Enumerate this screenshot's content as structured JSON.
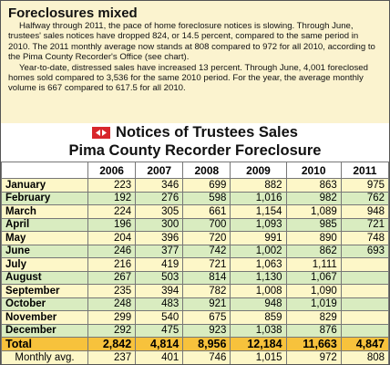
{
  "header": {
    "title": "Foreclosures mixed",
    "paragraphs": [
      "Halfway through 2011, the pace of home foreclosure notices is slowing. Through June, trustees' sales notices have dropped 824, or 14.5 percent, compared to the same period in 2010. The 2011 monthly average now stands at 808 compared to 972 for all 2010, according to the Pima County Recorder's Office (see chart).",
      "Year-to-date, distressed sales have increased 13 percent. Through June, 4,001 foreclosed homes sold compared to 3,536 for the same 2010 period. For the year, the average monthly volume is 667 compared to 617.5 for all 2010."
    ]
  },
  "table": {
    "title": [
      "Notices of Trustees Sales",
      "Pima County Recorder Foreclosure"
    ],
    "columns": [
      "2006",
      "2007",
      "2008",
      "2009",
      "2010",
      "2011"
    ],
    "rows": [
      [
        "January",
        "223",
        "346",
        "699",
        "882",
        "863",
        "975"
      ],
      [
        "February",
        "192",
        "276",
        "598",
        "1,016",
        "982",
        "762"
      ],
      [
        "March",
        "224",
        "305",
        "661",
        "1,154",
        "1,089",
        "948"
      ],
      [
        "April",
        "196",
        "300",
        "700",
        "1,093",
        "985",
        "721"
      ],
      [
        "May",
        "204",
        "396",
        "720",
        "991",
        "890",
        "748"
      ],
      [
        "June",
        "246",
        "377",
        "742",
        "1,002",
        "862",
        "693"
      ],
      [
        "July",
        "216",
        "419",
        "721",
        "1,063",
        "1,111"
      ],
      [
        "August",
        "267",
        "503",
        "814",
        "1,130",
        "1,067"
      ],
      [
        "September",
        "235",
        "394",
        "782",
        "1,008",
        "1,090"
      ],
      [
        "October",
        "248",
        "483",
        "921",
        "948",
        "1,019"
      ],
      [
        "November",
        "299",
        "540",
        "675",
        "859",
        "829"
      ],
      [
        "December",
        "292",
        "475",
        "923",
        "1,038",
        "876"
      ]
    ],
    "total": [
      "Total",
      "2,842",
      "4,814",
      "8,956",
      "12,184",
      "11,663",
      "4,847"
    ],
    "average": [
      "Monthly avg.",
      "237",
      "401",
      "746",
      "1,015",
      "972",
      "808"
    ]
  }
}
